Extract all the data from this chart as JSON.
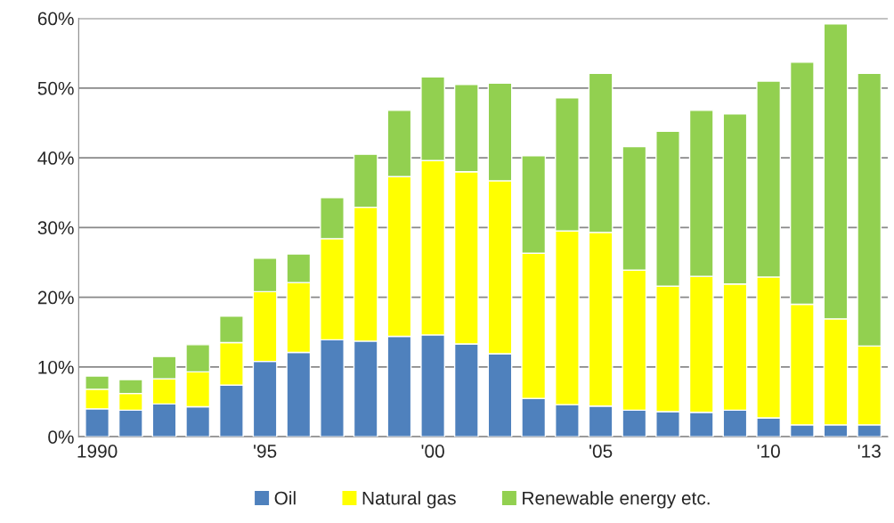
{
  "chart_data": {
    "type": "bar",
    "stacked": true,
    "categories": [
      "1990",
      null,
      null,
      null,
      null,
      "'95",
      null,
      null,
      null,
      null,
      "'00",
      null,
      null,
      null,
      null,
      "'05",
      null,
      null,
      null,
      null,
      "'10",
      null,
      null,
      "'13"
    ],
    "series": [
      {
        "name": "Oil",
        "color": "#4f81bd",
        "values": [
          4.0,
          3.8,
          4.7,
          4.3,
          7.4,
          10.8,
          12.1,
          13.9,
          13.7,
          14.4,
          14.6,
          13.3,
          11.9,
          5.5,
          4.6,
          4.4,
          3.8,
          3.6,
          3.5,
          3.8,
          2.7,
          1.7,
          1.7,
          1.7
        ]
      },
      {
        "name": "Natural gas",
        "color": "#ffff00",
        "values": [
          2.8,
          2.4,
          3.6,
          5.0,
          6.1,
          10.0,
          10.0,
          14.5,
          19.2,
          22.9,
          25.0,
          24.7,
          24.8,
          20.8,
          24.9,
          24.9,
          20.1,
          18.0,
          19.5,
          18.1,
          20.2,
          17.3,
          15.2,
          11.3
        ]
      },
      {
        "name": "Renewable energy etc.",
        "color": "#92d050",
        "values": [
          1.9,
          2.0,
          3.2,
          3.9,
          3.8,
          4.8,
          4.1,
          5.9,
          7.6,
          9.5,
          12.0,
          12.5,
          14.0,
          14.0,
          19.1,
          22.8,
          17.7,
          22.2,
          23.8,
          24.4,
          28.1,
          34.7,
          42.3,
          39.1
        ]
      }
    ],
    "ylim": [
      0,
      60
    ],
    "yticks": [
      {
        "value": 0,
        "label": "0%"
      },
      {
        "value": 10,
        "label": "10%"
      },
      {
        "value": 20,
        "label": "20%"
      },
      {
        "value": 30,
        "label": "30%"
      },
      {
        "value": 40,
        "label": "40%"
      },
      {
        "value": 50,
        "label": "50%"
      },
      {
        "value": 60,
        "label": "60%"
      }
    ],
    "grid": "y",
    "legend": "bottom"
  }
}
